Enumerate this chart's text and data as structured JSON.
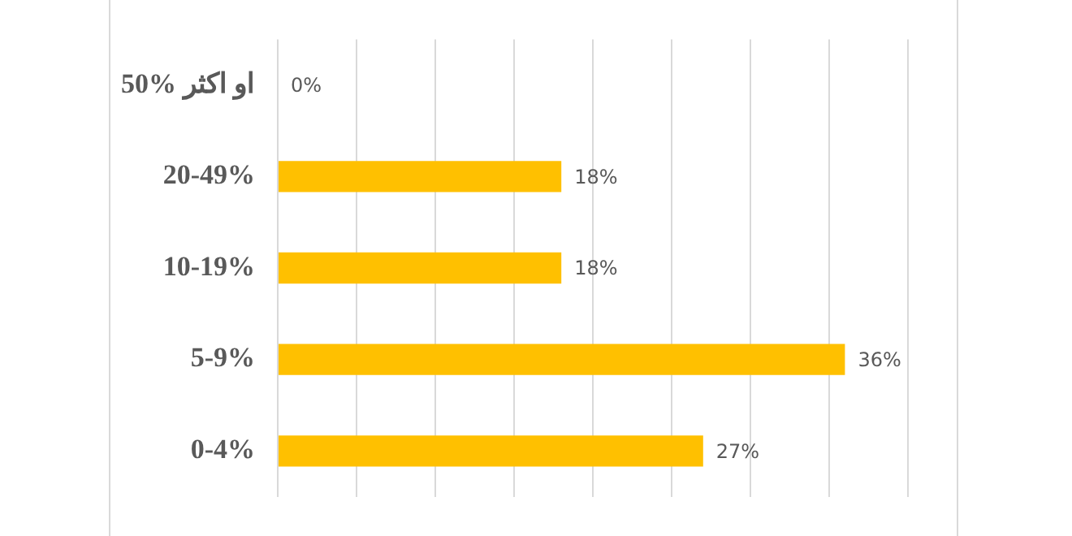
{
  "chart_data": {
    "type": "bar",
    "orientation": "horizontal",
    "categories": [
      "50% او اكثر",
      "20-49%",
      "10-19%",
      "5-9%",
      "0-4%"
    ],
    "values": [
      0,
      18,
      18,
      36,
      27
    ],
    "value_labels": [
      "0%",
      "18%",
      "18%",
      "36%",
      "27%"
    ],
    "color": "#ffc000",
    "xlim": [
      0,
      40
    ],
    "xticks": [
      {
        "value": 0,
        "label": null
      },
      {
        "value": 5,
        "label": null
      },
      {
        "value": 10,
        "label": null
      },
      {
        "value": 15,
        "label": null
      },
      {
        "value": 20,
        "label": null
      },
      {
        "value": 25,
        "label": null
      },
      {
        "value": 30,
        "label": null
      },
      {
        "value": 35,
        "label": null
      },
      {
        "value": 40,
        "label": null
      }
    ],
    "tick_labels": "y",
    "grid": "x"
  }
}
